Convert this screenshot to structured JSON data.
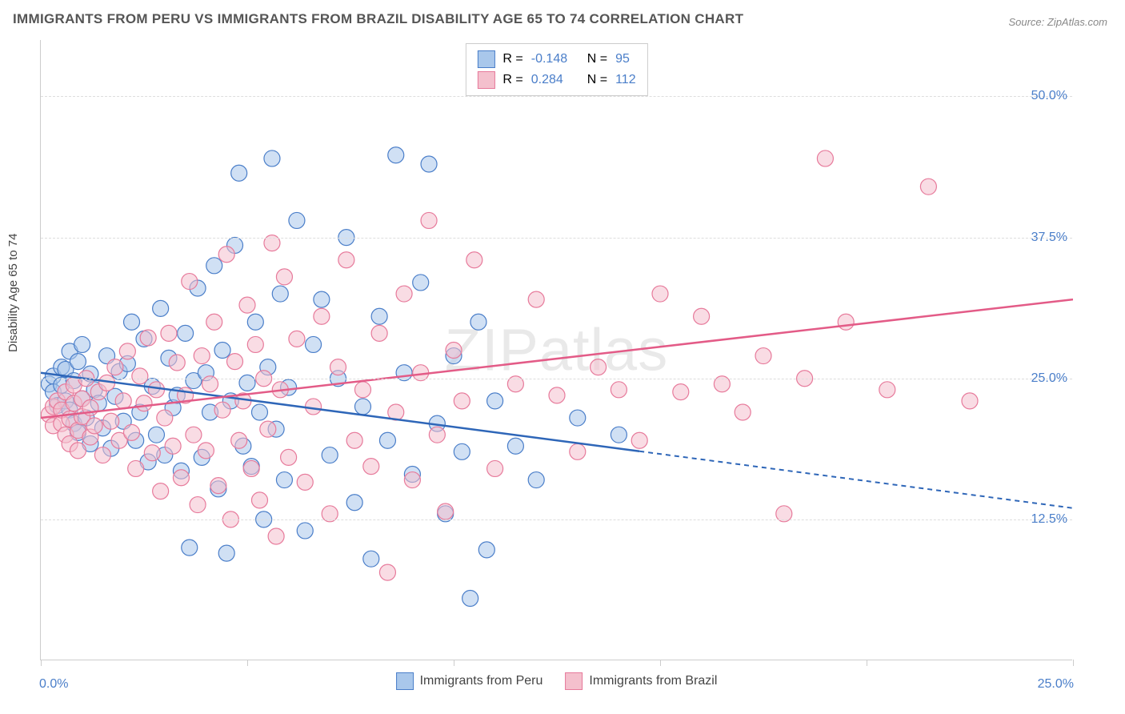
{
  "title": "IMMIGRANTS FROM PERU VS IMMIGRANTS FROM BRAZIL DISABILITY AGE 65 TO 74 CORRELATION CHART",
  "source": "Source: ZipAtlas.com",
  "y_axis_label": "Disability Age 65 to 74",
  "watermark": "ZIPatlas",
  "chart": {
    "type": "scatter",
    "xlim": [
      0,
      25
    ],
    "ylim": [
      0,
      55
    ],
    "x_ticks": [
      0,
      5,
      10,
      15,
      20,
      25
    ],
    "x_tick_labels": [
      "0.0%",
      "",
      "",
      "",
      "",
      "25.0%"
    ],
    "y_grid": [
      12.5,
      25.0,
      37.5,
      50.0
    ],
    "y_tick_labels": [
      "12.5%",
      "25.0%",
      "37.5%",
      "50.0%"
    ],
    "background_color": "#ffffff",
    "grid_color": "#dddddd",
    "axis_color": "#cccccc",
    "point_radius": 10,
    "point_opacity": 0.55,
    "line_width": 2.5,
    "series": [
      {
        "name": "Immigrants from Peru",
        "color_fill": "#a9c7eb",
        "color_stroke": "#4a7ec9",
        "line_color": "#2e66b8",
        "R": "-0.148",
        "N": "95",
        "trend": {
          "x1": 0,
          "y1": 25.5,
          "x2": 25,
          "y2": 13.5,
          "solid_until_x": 14.5
        },
        "points": [
          [
            0.2,
            24.5
          ],
          [
            0.3,
            25.2
          ],
          [
            0.3,
            23.8
          ],
          [
            0.4,
            22.6
          ],
          [
            0.5,
            26.0
          ],
          [
            0.5,
            24.4
          ],
          [
            0.6,
            25.8
          ],
          [
            0.6,
            23.0
          ],
          [
            0.7,
            27.4
          ],
          [
            0.7,
            22.2
          ],
          [
            0.8,
            24.8
          ],
          [
            0.8,
            21.0
          ],
          [
            0.9,
            26.5
          ],
          [
            0.9,
            20.2
          ],
          [
            1.0,
            23.2
          ],
          [
            1.0,
            28.0
          ],
          [
            1.1,
            21.5
          ],
          [
            1.2,
            25.4
          ],
          [
            1.2,
            19.2
          ],
          [
            1.3,
            24.0
          ],
          [
            1.4,
            22.8
          ],
          [
            1.5,
            20.6
          ],
          [
            1.6,
            27.0
          ],
          [
            1.7,
            18.8
          ],
          [
            1.8,
            23.4
          ],
          [
            1.9,
            25.6
          ],
          [
            2.0,
            21.2
          ],
          [
            2.1,
            26.3
          ],
          [
            2.2,
            30.0
          ],
          [
            2.3,
            19.5
          ],
          [
            2.4,
            22.0
          ],
          [
            2.5,
            28.5
          ],
          [
            2.6,
            17.6
          ],
          [
            2.7,
            24.3
          ],
          [
            2.8,
            20.0
          ],
          [
            2.9,
            31.2
          ],
          [
            3.0,
            18.2
          ],
          [
            3.1,
            26.8
          ],
          [
            3.2,
            22.4
          ],
          [
            3.3,
            23.5
          ],
          [
            3.4,
            16.8
          ],
          [
            3.5,
            29.0
          ],
          [
            3.6,
            10.0
          ],
          [
            3.7,
            24.8
          ],
          [
            3.8,
            33.0
          ],
          [
            3.9,
            18.0
          ],
          [
            4.0,
            25.5
          ],
          [
            4.1,
            22.0
          ],
          [
            4.2,
            35.0
          ],
          [
            4.3,
            15.2
          ],
          [
            4.4,
            27.5
          ],
          [
            4.5,
            9.5
          ],
          [
            4.6,
            23.0
          ],
          [
            4.7,
            36.8
          ],
          [
            4.8,
            43.2
          ],
          [
            4.9,
            19.0
          ],
          [
            5.0,
            24.6
          ],
          [
            5.1,
            17.2
          ],
          [
            5.2,
            30.0
          ],
          [
            5.3,
            22.0
          ],
          [
            5.4,
            12.5
          ],
          [
            5.5,
            26.0
          ],
          [
            5.6,
            44.5
          ],
          [
            5.7,
            20.5
          ],
          [
            5.8,
            32.5
          ],
          [
            5.9,
            16.0
          ],
          [
            6.0,
            24.2
          ],
          [
            6.2,
            39.0
          ],
          [
            6.4,
            11.5
          ],
          [
            6.6,
            28.0
          ],
          [
            6.8,
            32.0
          ],
          [
            7.0,
            18.2
          ],
          [
            7.2,
            25.0
          ],
          [
            7.4,
            37.5
          ],
          [
            7.6,
            14.0
          ],
          [
            7.8,
            22.5
          ],
          [
            8.0,
            9.0
          ],
          [
            8.2,
            30.5
          ],
          [
            8.4,
            19.5
          ],
          [
            8.6,
            44.8
          ],
          [
            8.8,
            25.5
          ],
          [
            9.0,
            16.5
          ],
          [
            9.2,
            33.5
          ],
          [
            9.4,
            44.0
          ],
          [
            9.6,
            21.0
          ],
          [
            9.8,
            13.0
          ],
          [
            10.0,
            27.0
          ],
          [
            10.2,
            18.5
          ],
          [
            10.4,
            5.5
          ],
          [
            10.6,
            30.0
          ],
          [
            10.8,
            9.8
          ],
          [
            11.0,
            23.0
          ],
          [
            11.5,
            19.0
          ],
          [
            12.0,
            16.0
          ],
          [
            13.0,
            21.5
          ],
          [
            14.0,
            20.0
          ]
        ]
      },
      {
        "name": "Immigrants from Brazil",
        "color_fill": "#f4c0cd",
        "color_stroke": "#e77a9b",
        "line_color": "#e35b87",
        "R": "0.284",
        "N": "112",
        "trend": {
          "x1": 0,
          "y1": 21.5,
          "x2": 25,
          "y2": 32.0,
          "solid_until_x": 25
        },
        "points": [
          [
            0.2,
            21.8
          ],
          [
            0.3,
            22.5
          ],
          [
            0.3,
            20.8
          ],
          [
            0.4,
            23.0
          ],
          [
            0.5,
            21.0
          ],
          [
            0.5,
            22.2
          ],
          [
            0.6,
            20.0
          ],
          [
            0.6,
            23.8
          ],
          [
            0.7,
            21.4
          ],
          [
            0.7,
            19.2
          ],
          [
            0.8,
            22.8
          ],
          [
            0.8,
            24.4
          ],
          [
            0.9,
            20.4
          ],
          [
            0.9,
            18.6
          ],
          [
            1.0,
            23.2
          ],
          [
            1.0,
            21.6
          ],
          [
            1.1,
            25.0
          ],
          [
            1.2,
            19.8
          ],
          [
            1.2,
            22.4
          ],
          [
            1.3,
            20.8
          ],
          [
            1.4,
            23.8
          ],
          [
            1.5,
            18.2
          ],
          [
            1.6,
            24.6
          ],
          [
            1.7,
            21.2
          ],
          [
            1.8,
            26.0
          ],
          [
            1.9,
            19.5
          ],
          [
            2.0,
            23.0
          ],
          [
            2.1,
            27.4
          ],
          [
            2.2,
            20.2
          ],
          [
            2.3,
            17.0
          ],
          [
            2.4,
            25.2
          ],
          [
            2.5,
            22.8
          ],
          [
            2.6,
            28.6
          ],
          [
            2.7,
            18.4
          ],
          [
            2.8,
            24.0
          ],
          [
            2.9,
            15.0
          ],
          [
            3.0,
            21.5
          ],
          [
            3.1,
            29.0
          ],
          [
            3.2,
            19.0
          ],
          [
            3.3,
            26.4
          ],
          [
            3.4,
            16.2
          ],
          [
            3.5,
            23.5
          ],
          [
            3.6,
            33.6
          ],
          [
            3.7,
            20.0
          ],
          [
            3.8,
            13.8
          ],
          [
            3.9,
            27.0
          ],
          [
            4.0,
            18.6
          ],
          [
            4.1,
            24.5
          ],
          [
            4.2,
            30.0
          ],
          [
            4.3,
            15.5
          ],
          [
            4.4,
            22.2
          ],
          [
            4.5,
            36.0
          ],
          [
            4.6,
            12.5
          ],
          [
            4.7,
            26.5
          ],
          [
            4.8,
            19.5
          ],
          [
            4.9,
            23.0
          ],
          [
            5.0,
            31.5
          ],
          [
            5.1,
            17.0
          ],
          [
            5.2,
            28.0
          ],
          [
            5.3,
            14.2
          ],
          [
            5.4,
            25.0
          ],
          [
            5.5,
            20.5
          ],
          [
            5.6,
            37.0
          ],
          [
            5.7,
            11.0
          ],
          [
            5.8,
            24.0
          ],
          [
            5.9,
            34.0
          ],
          [
            6.0,
            18.0
          ],
          [
            6.2,
            28.5
          ],
          [
            6.4,
            15.8
          ],
          [
            6.6,
            22.5
          ],
          [
            6.8,
            30.5
          ],
          [
            7.0,
            13.0
          ],
          [
            7.2,
            26.0
          ],
          [
            7.4,
            35.5
          ],
          [
            7.6,
            19.5
          ],
          [
            7.8,
            24.0
          ],
          [
            8.0,
            17.2
          ],
          [
            8.2,
            29.0
          ],
          [
            8.4,
            7.8
          ],
          [
            8.6,
            22.0
          ],
          [
            8.8,
            32.5
          ],
          [
            9.0,
            16.0
          ],
          [
            9.2,
            25.5
          ],
          [
            9.4,
            39.0
          ],
          [
            9.6,
            20.0
          ],
          [
            9.8,
            13.2
          ],
          [
            10.0,
            27.5
          ],
          [
            10.2,
            23.0
          ],
          [
            10.5,
            35.5
          ],
          [
            11.0,
            17.0
          ],
          [
            11.5,
            24.5
          ],
          [
            12.0,
            32.0
          ],
          [
            12.5,
            23.5
          ],
          [
            13.0,
            18.5
          ],
          [
            13.5,
            26.0
          ],
          [
            14.0,
            24.0
          ],
          [
            14.5,
            19.5
          ],
          [
            15.0,
            32.5
          ],
          [
            15.5,
            23.8
          ],
          [
            16.0,
            30.5
          ],
          [
            16.5,
            24.5
          ],
          [
            17.0,
            22.0
          ],
          [
            17.5,
            27.0
          ],
          [
            18.0,
            13.0
          ],
          [
            18.5,
            25.0
          ],
          [
            19.0,
            44.5
          ],
          [
            19.5,
            30.0
          ],
          [
            20.5,
            24.0
          ],
          [
            21.5,
            42.0
          ],
          [
            22.5,
            23.0
          ]
        ]
      }
    ]
  },
  "legend_top": {
    "R_label": "R =",
    "N_label": "N ="
  },
  "value_color": "#4a7ec9"
}
